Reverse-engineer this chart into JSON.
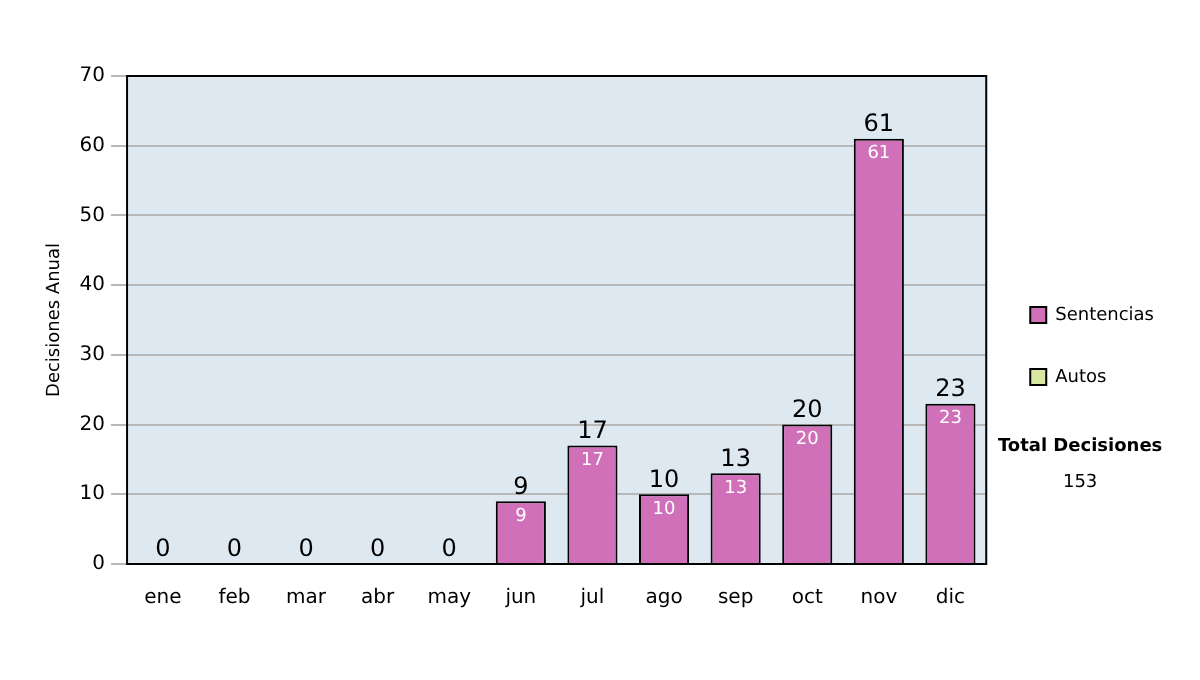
{
  "chart_data": {
    "type": "bar",
    "stacked": true,
    "ylabel": "Decisiones Anual",
    "categories": [
      "ene",
      "feb",
      "mar",
      "abr",
      "may",
      "jun",
      "jul",
      "ago",
      "sep",
      "oct",
      "nov",
      "dic"
    ],
    "series": [
      {
        "name": "Sentencias",
        "color": "#d070b8",
        "values": [
          0,
          0,
          0,
          0,
          0,
          9,
          17,
          10,
          13,
          20,
          61,
          23
        ],
        "value_labels": [
          null,
          null,
          null,
          null,
          null,
          "9",
          "17",
          "10",
          "13",
          "20",
          "61",
          "23"
        ]
      },
      {
        "name": "Autos",
        "color": "#d8e8a0",
        "values": [
          0,
          0,
          0,
          0,
          0,
          0,
          0,
          0,
          0,
          0,
          0,
          0
        ]
      }
    ],
    "totals": [
      "0",
      "0",
      "0",
      "0",
      "0",
      "9",
      "17",
      "10",
      "13",
      "20",
      "61",
      "23"
    ],
    "ylim": [
      0,
      70
    ],
    "yticks": [
      0,
      10,
      20,
      30,
      40,
      50,
      60,
      70
    ],
    "grid": "y",
    "legend": "right",
    "annotations": [
      "Total Decisiones",
      "153"
    ]
  }
}
